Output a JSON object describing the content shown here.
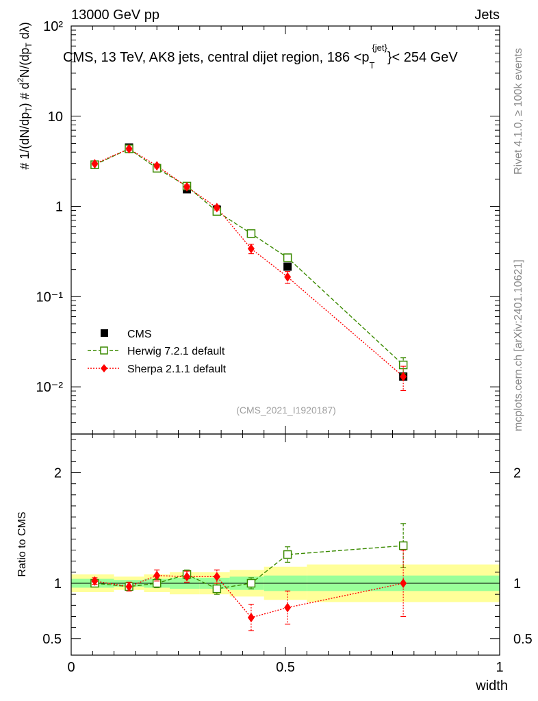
{
  "header": {
    "left": "13000 GeV pp",
    "right": "Jets"
  },
  "plot_title": "CMS, 13 TeV, AK8 jets, central dijet region, 186 <p",
  "plot_title_sub": "T",
  "plot_title_sup": "{jet}",
  "plot_title_end": "}< 254 GeV",
  "side_text_top": "Rivet 4.1.0, ≥ 100k events",
  "side_text_bottom": "mcplots.cern.ch [arXiv:2401.10621]",
  "analysis_id": "(CMS_2021_I1920187)",
  "ratio_ylabel": "Ratio to CMS",
  "colors": {
    "cms": "#000000",
    "herwig": "#3a8a00",
    "sherpa": "#ff0000",
    "green_band": "#99ff99",
    "yellow_band": "#ffff99"
  },
  "chart_data": {
    "type": "scatter",
    "xlabel": "width",
    "xlim": [
      0,
      1
    ],
    "x_ticks": [
      "0",
      "0.5",
      "1"
    ],
    "main": {
      "yscale": "log",
      "ylim": [
        0.003,
        100
      ],
      "ylabel": "# 1/(dN/dp_T) # d²N/(dp_T dλ)",
      "y_ticks": [
        "10⁻²",
        "10⁻¹",
        "1",
        "10",
        "10²"
      ]
    },
    "ratio": {
      "ylim": [
        0.35,
        2.35
      ],
      "y_ticks": [
        "0.5",
        "1",
        "2"
      ]
    },
    "bins": [
      [
        0.0,
        0.1
      ],
      [
        0.1,
        0.17
      ],
      [
        0.17,
        0.23
      ],
      [
        0.23,
        0.3
      ],
      [
        0.3,
        0.37
      ],
      [
        0.37,
        0.45
      ],
      [
        0.45,
        0.55
      ],
      [
        0.55,
        1.0
      ]
    ],
    "cms_band_green": [
      0.04,
      0.03,
      0.04,
      0.05,
      0.05,
      0.06,
      0.07,
      0.07
    ],
    "cms_band_yellow": [
      0.08,
      0.06,
      0.08,
      0.1,
      0.1,
      0.12,
      0.15,
      0.17
    ],
    "legend": [
      "CMS",
      "Herwig 7.2.1 default",
      "Sherpa 2.1.1 default"
    ],
    "series": [
      {
        "name": "CMS",
        "marker": "square",
        "x": [
          0.055,
          0.135,
          0.2,
          0.27,
          0.34,
          0.42,
          0.505,
          0.775
        ],
        "y": [
          2.9,
          4.5,
          2.65,
          1.55,
          0.92,
          0.5,
          0.215,
          0.013
        ]
      },
      {
        "name": "Herwig 7.2.1 default",
        "marker": "open-square",
        "x": [
          0.055,
          0.135,
          0.2,
          0.27,
          0.34,
          0.42,
          0.505,
          0.775
        ],
        "y": [
          2.9,
          4.35,
          2.65,
          1.68,
          0.88,
          0.5,
          0.27,
          0.0175
        ],
        "ratio": [
          1.0,
          0.97,
          1.0,
          1.08,
          0.95,
          1.0,
          1.26,
          1.34
        ],
        "ratio_err": [
          0.03,
          0.03,
          0.04,
          0.04,
          0.05,
          0.05,
          0.07,
          0.2
        ]
      },
      {
        "name": "Sherpa 2.1.1 default",
        "marker": "diamond",
        "x": [
          0.055,
          0.135,
          0.2,
          0.27,
          0.34,
          0.42,
          0.505,
          0.775
        ],
        "y": [
          2.97,
          4.35,
          2.82,
          1.65,
          0.97,
          0.34,
          0.165,
          0.013
        ],
        "ratio": [
          1.02,
          0.97,
          1.07,
          1.06,
          1.06,
          0.69,
          0.78,
          1.0
        ],
        "ratio_err": [
          0.03,
          0.04,
          0.05,
          0.05,
          0.06,
          0.12,
          0.15,
          0.3
        ]
      }
    ]
  }
}
